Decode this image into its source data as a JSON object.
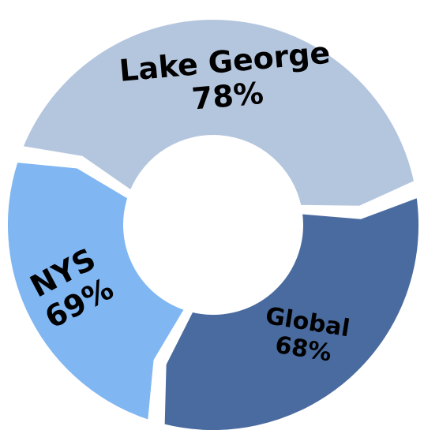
{
  "chart_data": {
    "type": "pie",
    "variant": "donut",
    "segments": [
      {
        "name": "Lake George",
        "value": 78,
        "label": "78%",
        "color": "#b4c6de"
      },
      {
        "name": "Global",
        "value": 68,
        "label": "68%",
        "color": "#4a6ba0"
      },
      {
        "name": "NYS",
        "value": 69,
        "label": "69%",
        "color": "#80b6f2"
      }
    ]
  }
}
